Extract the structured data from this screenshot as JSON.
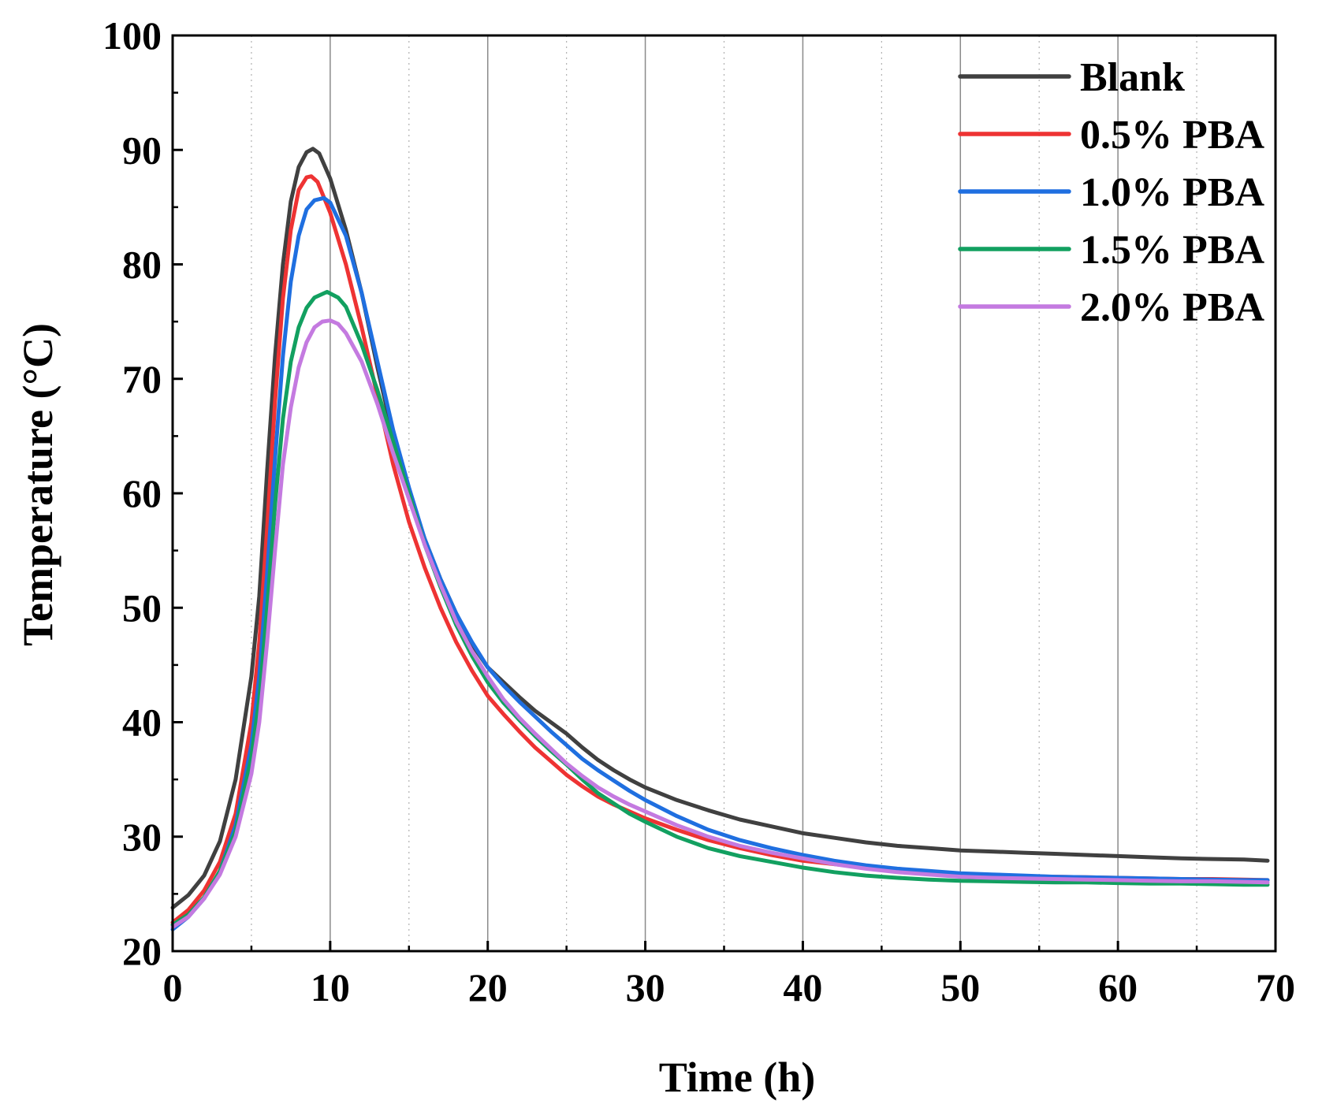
{
  "chart_data": {
    "type": "line",
    "title": "",
    "xlabel": "Time (h)",
    "ylabel": "Temperature (°C)",
    "xlim": [
      0,
      70
    ],
    "ylim": [
      20,
      100
    ],
    "xticks": [
      0,
      10,
      20,
      30,
      40,
      50,
      60,
      70
    ],
    "yticks": [
      20,
      30,
      40,
      50,
      60,
      70,
      80,
      90,
      100
    ],
    "grid": "vertical major solid, vertical minor dotted",
    "legend_position": "top-right",
    "series": [
      {
        "name": "Blank",
        "color": "#404040",
        "x": [
          0,
          1,
          2,
          3,
          4,
          5,
          5.5,
          6,
          6.5,
          7,
          7.5,
          8,
          8.5,
          8.9,
          9.3,
          10,
          11,
          12,
          13,
          14,
          15,
          16,
          17,
          18,
          19,
          20,
          21,
          22,
          23,
          24,
          25,
          26,
          27,
          28,
          29,
          30,
          32,
          34,
          36,
          38,
          40,
          42,
          44,
          46,
          48,
          50,
          52,
          54,
          56,
          58,
          60,
          62,
          64,
          66,
          68,
          69.5
        ],
        "values": [
          23.8,
          24.9,
          26.6,
          29.6,
          35,
          44,
          51,
          62,
          72,
          80,
          85.5,
          88.5,
          89.8,
          90.1,
          89.7,
          87.5,
          83,
          77.5,
          71,
          65,
          60,
          56,
          52.5,
          49.5,
          46.8,
          44.8,
          43.5,
          42.2,
          41,
          40,
          39,
          37.8,
          36.7,
          35.8,
          35,
          34.3,
          33.2,
          32.3,
          31.5,
          30.9,
          30.3,
          29.9,
          29.5,
          29.2,
          29,
          28.8,
          28.7,
          28.6,
          28.5,
          28.4,
          28.3,
          28.2,
          28.1,
          28.05,
          28,
          27.9
        ]
      },
      {
        "name": "0.5% PBA",
        "color": "#ee3333",
        "x": [
          0,
          1,
          2,
          3,
          4,
          5,
          5.5,
          6,
          6.5,
          7,
          7.5,
          8,
          8.5,
          8.8,
          9.2,
          10,
          11,
          12,
          13,
          14,
          15,
          16,
          17,
          18,
          19,
          20,
          21,
          22,
          23,
          24,
          25,
          26,
          27,
          28,
          29,
          30,
          32,
          34,
          36,
          38,
          40,
          42,
          44,
          46,
          48,
          50,
          52,
          54,
          56,
          58,
          60,
          62,
          64,
          66,
          68,
          69.5
        ],
        "values": [
          22.5,
          23.6,
          25.3,
          27.8,
          32,
          40,
          47,
          57,
          68,
          77,
          83,
          86.5,
          87.6,
          87.7,
          87.2,
          84.5,
          80,
          74.5,
          68.5,
          62.5,
          57.5,
          53.5,
          50,
          47,
          44.5,
          42.3,
          40.7,
          39.2,
          37.8,
          36.6,
          35.4,
          34.4,
          33.5,
          32.8,
          32.2,
          31.6,
          30.6,
          29.7,
          29,
          28.4,
          27.9,
          27.6,
          27.3,
          27.05,
          26.85,
          26.7,
          26.6,
          26.55,
          26.5,
          26.45,
          26.4,
          26.35,
          26.3,
          26.3,
          26.25,
          26.2
        ]
      },
      {
        "name": "1.0% PBA",
        "color": "#1f6fe0",
        "x": [
          0,
          1,
          2,
          3,
          4,
          5,
          5.5,
          6,
          6.5,
          7,
          7.5,
          8,
          8.5,
          9,
          9.6,
          10,
          11,
          12,
          13,
          14,
          15,
          16,
          17,
          18,
          19,
          20,
          21,
          22,
          23,
          24,
          25,
          26,
          27,
          28,
          29,
          30,
          32,
          34,
          36,
          38,
          40,
          42,
          44,
          46,
          48,
          50,
          52,
          54,
          56,
          58,
          60,
          62,
          64,
          66,
          68,
          69.5
        ],
        "values": [
          21.9,
          23,
          24.6,
          27,
          31,
          38,
          44,
          53,
          63,
          72,
          78.5,
          82.5,
          84.8,
          85.6,
          85.8,
          85.4,
          82.5,
          77.5,
          71.5,
          65.5,
          60.5,
          56,
          52.5,
          49.5,
          47,
          44.8,
          43.2,
          41.8,
          40.5,
          39.2,
          38,
          36.8,
          35.8,
          34.9,
          34,
          33.2,
          31.8,
          30.6,
          29.7,
          29,
          28.4,
          27.9,
          27.5,
          27.2,
          27,
          26.8,
          26.7,
          26.6,
          26.5,
          26.45,
          26.4,
          26.35,
          26.3,
          26.25,
          26.2,
          26.2
        ]
      },
      {
        "name": "1.5% PBA",
        "color": "#12a060",
        "x": [
          0,
          1,
          2,
          3,
          4,
          5,
          5.5,
          6,
          6.5,
          7,
          7.5,
          8,
          8.5,
          9,
          9.8,
          10.5,
          11,
          12,
          13,
          14,
          15,
          16,
          17,
          18,
          19,
          20,
          21,
          22,
          23,
          24,
          25,
          26,
          27,
          28,
          29,
          30,
          32,
          34,
          36,
          38,
          40,
          42,
          44,
          46,
          48,
          50,
          52,
          54,
          56,
          58,
          60,
          62,
          64,
          66,
          68,
          69.5
        ],
        "values": [
          22.3,
          23.2,
          24.7,
          27,
          30.5,
          37,
          42,
          50,
          59,
          66.5,
          71.5,
          74.5,
          76.2,
          77.1,
          77.6,
          77.1,
          76.3,
          73,
          69,
          64.5,
          60,
          55.5,
          51.8,
          48.5,
          45.8,
          43.5,
          41.7,
          40.2,
          38.8,
          37.5,
          36.3,
          35,
          33.8,
          32.9,
          32,
          31.3,
          30,
          29,
          28.3,
          27.8,
          27.3,
          26.9,
          26.6,
          26.4,
          26.25,
          26.15,
          26.1,
          26.05,
          26,
          26,
          25.95,
          25.9,
          25.9,
          25.85,
          25.8,
          25.8
        ]
      },
      {
        "name": "2.0% PBA",
        "color": "#c47ae0",
        "x": [
          0,
          1,
          2,
          3,
          4,
          5,
          5.5,
          6,
          6.5,
          7,
          7.5,
          8,
          8.5,
          9,
          9.5,
          10,
          10.5,
          11,
          12,
          13,
          14,
          15,
          16,
          17,
          18,
          19,
          20,
          21,
          22,
          23,
          24,
          25,
          26,
          27,
          28,
          29,
          30,
          32,
          34,
          36,
          38,
          40,
          42,
          44,
          46,
          48,
          50,
          52,
          54,
          56,
          58,
          60,
          62,
          64,
          66,
          68,
          69.5
        ],
        "values": [
          22.1,
          23,
          24.6,
          26.7,
          30,
          35.5,
          40,
          47,
          55,
          62.5,
          67.5,
          71,
          73.2,
          74.5,
          75,
          75.1,
          74.8,
          74,
          71.5,
          67.8,
          63.5,
          59.5,
          55.5,
          52,
          48.8,
          46.2,
          44,
          42,
          40.4,
          39,
          37.7,
          36.4,
          35.3,
          34.3,
          33.5,
          32.8,
          32.2,
          31,
          30,
          29.2,
          28.6,
          28.1,
          27.6,
          27.2,
          26.9,
          26.7,
          26.5,
          26.4,
          26.35,
          26.3,
          26.25,
          26.2,
          26.15,
          26.1,
          26.1,
          26.05,
          26
        ]
      }
    ]
  }
}
